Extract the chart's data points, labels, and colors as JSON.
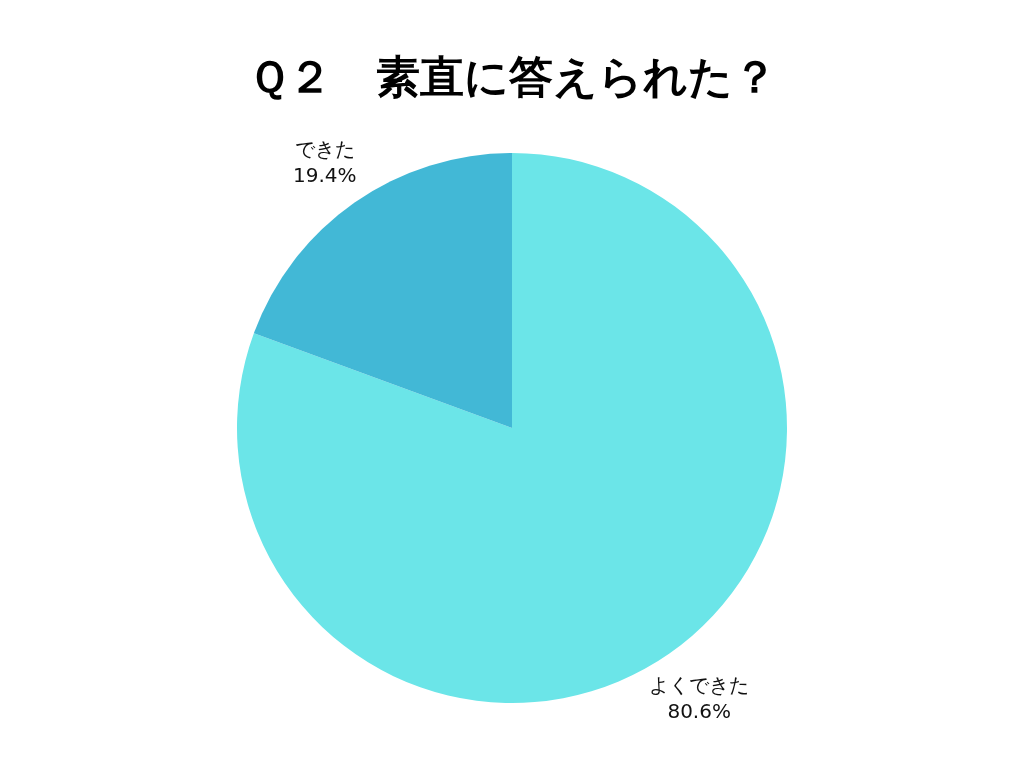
{
  "chart_data": {
    "type": "pie",
    "title": "Ｑ２　素直に答えられた？",
    "categories": [
      "よくできた",
      "できた"
    ],
    "values": [
      80.6,
      19.4
    ],
    "colors": [
      "#6be5e8",
      "#42b8d6"
    ],
    "value_labels": [
      "80.6%",
      "19.4%"
    ]
  }
}
